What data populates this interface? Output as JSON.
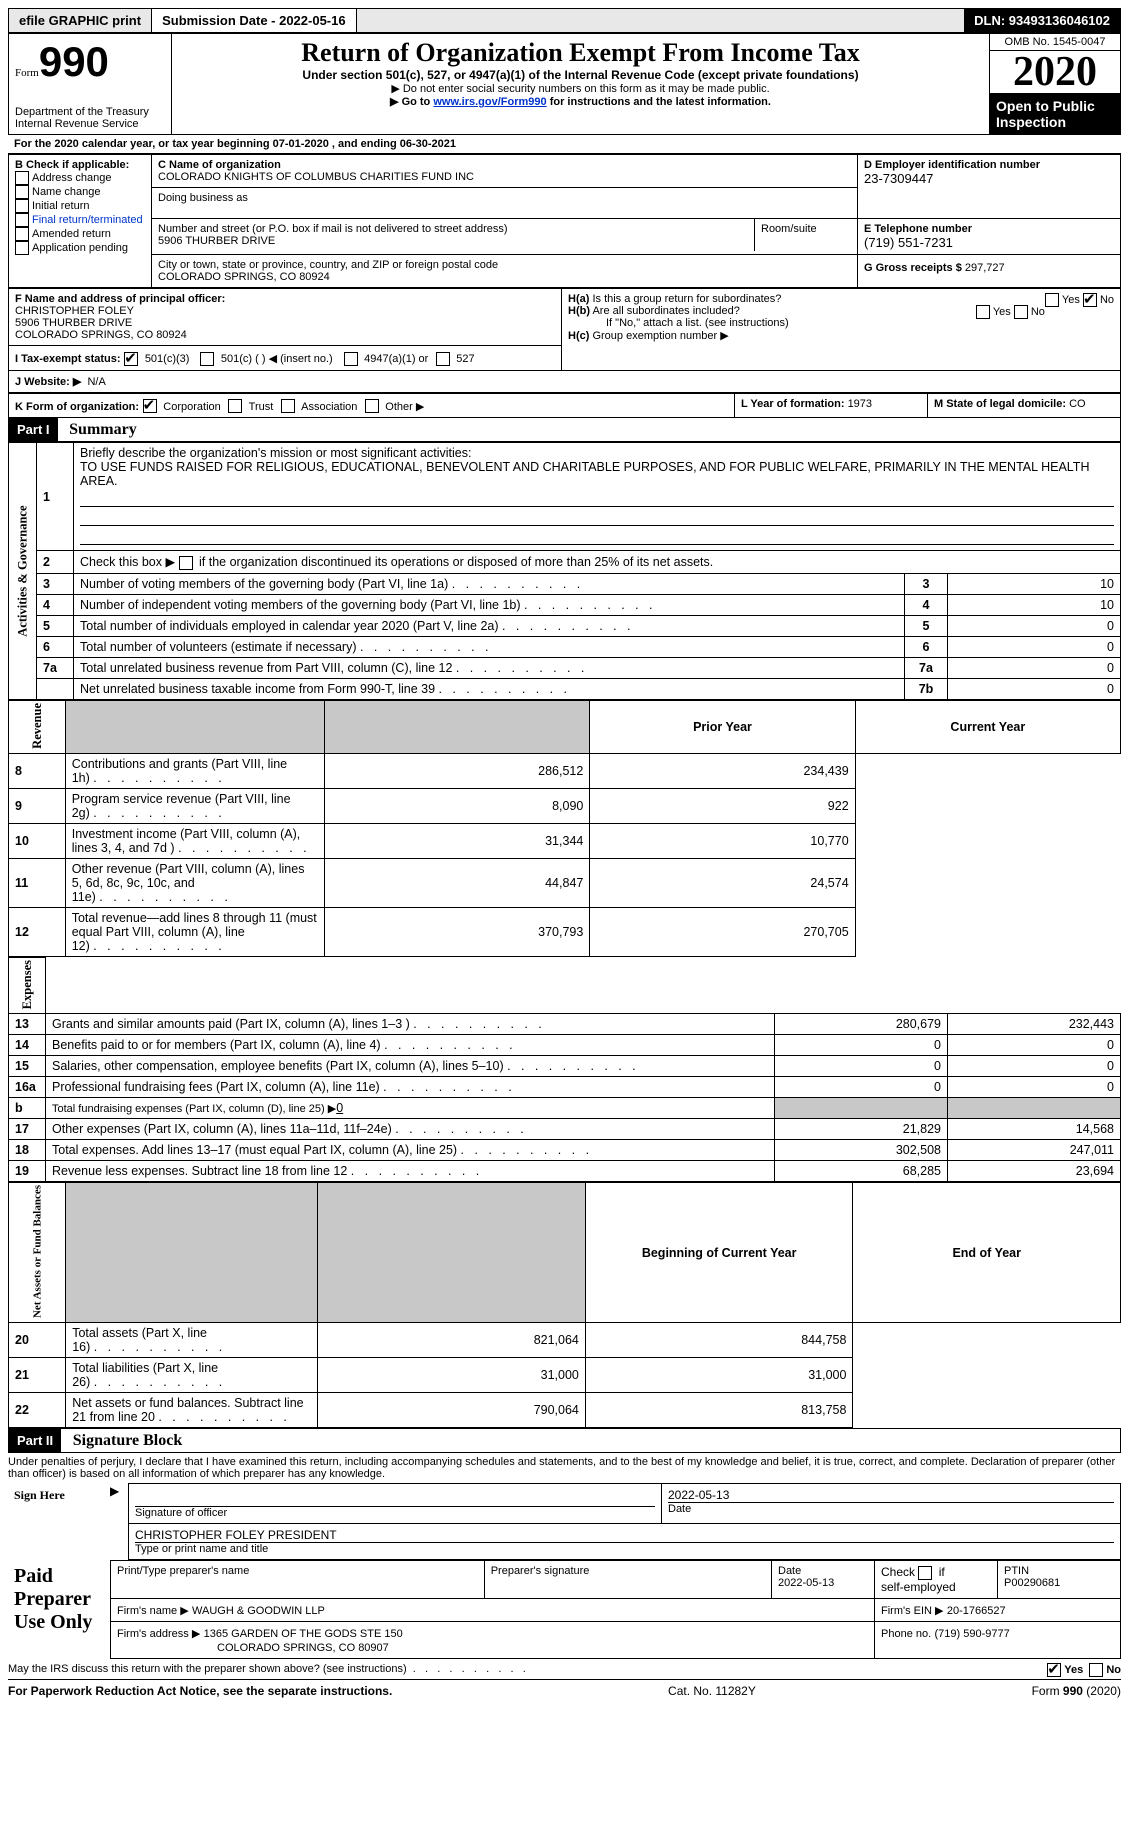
{
  "topbar": {
    "efile": "efile GRAPHIC print",
    "submission_label": "Submission Date - 2022-05-16",
    "dln": "DLN: 93493136046102"
  },
  "header": {
    "form_word": "Form",
    "form_num": "990",
    "dept": "Department of the Treasury\nInternal Revenue Service",
    "title": "Return of Organization Exempt From Income Tax",
    "subtitle": "Under section 501(c), 527, or 4947(a)(1) of the Internal Revenue Code (except private foundations)",
    "note1": "▶ Do not enter social security numbers on this form as it may be made public.",
    "note2_pre": "▶ Go to ",
    "note2_link": "www.irs.gov/Form990",
    "note2_post": " for instructions and the latest information.",
    "omb": "OMB No. 1545-0047",
    "year": "2020",
    "open": "Open to Public Inspection"
  },
  "A": "For the 2020 calendar year, or tax year beginning 07-01-2020   , and ending 06-30-2021",
  "B": {
    "label": "B Check if applicable:",
    "items": [
      "Address change",
      "Name change",
      "Initial return",
      "Final return/terminated",
      "Amended return",
      "Application pending"
    ]
  },
  "C": {
    "name_label": "C Name of organization",
    "name": "COLORADO KNIGHTS OF COLUMBUS CHARITIES FUND INC",
    "dba_label": "Doing business as",
    "addr_label": "Number and street (or P.O. box if mail is not delivered to street address)",
    "room_label": "Room/suite",
    "addr": "5906 THURBER DRIVE",
    "city_label": "City or town, state or province, country, and ZIP or foreign postal code",
    "city": "COLORADO SPRINGS, CO  80924"
  },
  "D": {
    "label": "D Employer identification number",
    "value": "23-7309447"
  },
  "E": {
    "label": "E Telephone number",
    "value": "(719) 551-7231"
  },
  "G": {
    "label": "G Gross receipts $ ",
    "value": "297,727"
  },
  "F": {
    "label": "F  Name and address of principal officer:",
    "name": "CHRISTOPHER FOLEY",
    "addr1": "5906 THURBER DRIVE",
    "addr2": "COLORADO SPRINGS, CO  80924"
  },
  "H": {
    "a": "Is this a group return for subordinates?",
    "b": "Are all subordinates included?",
    "b_note": "If \"No,\" attach a list. (see instructions)",
    "c": "Group exemption number ▶",
    "yes": "Yes",
    "no": "No"
  },
  "I": {
    "label": "I  Tax-exempt status:",
    "o1": "501(c)(3)",
    "o2": "501(c) (   ) ◀ (insert no.)",
    "o3": "4947(a)(1) or",
    "o4": "527"
  },
  "J": {
    "label": "J  Website: ▶",
    "value": "N/A"
  },
  "K": {
    "label": "K Form of organization:",
    "o1": "Corporation",
    "o2": "Trust",
    "o3": "Association",
    "o4": "Other ▶"
  },
  "L": {
    "label": "L Year of formation: ",
    "value": "1973"
  },
  "M": {
    "label": "M State of legal domicile: ",
    "value": "CO"
  },
  "part1": {
    "header": "Part I",
    "title": "Summary",
    "q1_label": "Briefly describe the organization's mission or most significant activities:",
    "q1_text": "TO USE FUNDS RAISED FOR RELIGIOUS, EDUCATIONAL, BENEVOLENT AND CHARITABLE PURPOSES, AND FOR PUBLIC WELFARE, PRIMARILY IN THE MENTAL HEALTH AREA.",
    "q2": "Check this box ▶        if the organization discontinued its operations or disposed of more than 25% of its net assets.",
    "vlabels": {
      "a": "Activities & Governance",
      "b": "Revenue",
      "c": "Expenses",
      "d": "Net Assets or Fund Balances"
    },
    "col_prior": "Prior Year",
    "col_current": "Current Year",
    "col_begin": "Beginning of Current Year",
    "col_end": "End of Year",
    "lines_gov": [
      {
        "n": "3",
        "t": "Number of voting members of the governing body (Part VI, line 1a)",
        "box": "3",
        "v": "10"
      },
      {
        "n": "4",
        "t": "Number of independent voting members of the governing body (Part VI, line 1b)",
        "box": "4",
        "v": "10"
      },
      {
        "n": "5",
        "t": "Total number of individuals employed in calendar year 2020 (Part V, line 2a)",
        "box": "5",
        "v": "0"
      },
      {
        "n": "6",
        "t": "Total number of volunteers (estimate if necessary)",
        "box": "6",
        "v": "0"
      },
      {
        "n": "7a",
        "t": "Total unrelated business revenue from Part VIII, column (C), line 12",
        "box": "7a",
        "v": "0"
      },
      {
        "n": "",
        "t": "Net unrelated business taxable income from Form 990-T, line 39",
        "box": "7b",
        "v": "0"
      }
    ],
    "lines_rev": [
      {
        "n": "8",
        "t": "Contributions and grants (Part VIII, line 1h)",
        "p": "286,512",
        "c": "234,439"
      },
      {
        "n": "9",
        "t": "Program service revenue (Part VIII, line 2g)",
        "p": "8,090",
        "c": "922"
      },
      {
        "n": "10",
        "t": "Investment income (Part VIII, column (A), lines 3, 4, and 7d )",
        "p": "31,344",
        "c": "10,770"
      },
      {
        "n": "11",
        "t": "Other revenue (Part VIII, column (A), lines 5, 6d, 8c, 9c, 10c, and 11e)",
        "p": "44,847",
        "c": "24,574"
      },
      {
        "n": "12",
        "t": "Total revenue—add lines 8 through 11 (must equal Part VIII, column (A), line 12)",
        "p": "370,793",
        "c": "270,705"
      }
    ],
    "lines_exp": [
      {
        "n": "13",
        "t": "Grants and similar amounts paid (Part IX, column (A), lines 1–3 )",
        "p": "280,679",
        "c": "232,443"
      },
      {
        "n": "14",
        "t": "Benefits paid to or for members (Part IX, column (A), line 4)",
        "p": "0",
        "c": "0"
      },
      {
        "n": "15",
        "t": "Salaries, other compensation, employee benefits (Part IX, column (A), lines 5–10)",
        "p": "0",
        "c": "0"
      },
      {
        "n": "16a",
        "t": "Professional fundraising fees (Part IX, column (A), line 11e)",
        "p": "0",
        "c": "0"
      }
    ],
    "line_16b_label": "Total fundraising expenses (Part IX, column (D), line 25) ▶",
    "line_16b_val": "0",
    "lines_exp2": [
      {
        "n": "17",
        "t": "Other expenses (Part IX, column (A), lines 11a–11d, 11f–24e)",
        "p": "21,829",
        "c": "14,568"
      },
      {
        "n": "18",
        "t": "Total expenses. Add lines 13–17 (must equal Part IX, column (A), line 25)",
        "p": "302,508",
        "c": "247,011"
      },
      {
        "n": "19",
        "t": "Revenue less expenses. Subtract line 18 from line 12",
        "p": "68,285",
        "c": "23,694"
      }
    ],
    "lines_net": [
      {
        "n": "20",
        "t": "Total assets (Part X, line 16)",
        "p": "821,064",
        "c": "844,758"
      },
      {
        "n": "21",
        "t": "Total liabilities (Part X, line 26)",
        "p": "31,000",
        "c": "31,000"
      },
      {
        "n": "22",
        "t": "Net assets or fund balances. Subtract line 21 from line 20",
        "p": "790,064",
        "c": "813,758"
      }
    ]
  },
  "part2": {
    "header": "Part II",
    "title": "Signature Block",
    "declaration": "Under penalties of perjury, I declare that I have examined this return, including accompanying schedules and statements, and to the best of my knowledge and belief, it is true, correct, and complete. Declaration of preparer (other than officer) is based on all information of which preparer has any knowledge.",
    "sign_here": "Sign Here",
    "sig_officer": "Signature of officer",
    "sig_date": "2022-05-13",
    "date_label": "Date",
    "officer_name": "CHRISTOPHER FOLEY PRESIDENT",
    "type_name": "Type or print name and title",
    "paid_label": "Paid Preparer Use Only",
    "prep_name_label": "Print/Type preparer's name",
    "prep_sig_label": "Preparer's signature",
    "prep_date_label": "Date",
    "prep_date": "2022-05-13",
    "check_self": "Check        if self-employed",
    "ptin_label": "PTIN",
    "ptin": "P00290681",
    "firm_name_label": "Firm's name   ▶",
    "firm_name": "WAUGH & GOODWIN LLP",
    "firm_ein_label": "Firm's EIN ▶",
    "firm_ein": "20-1766527",
    "firm_addr_label": "Firm's address ▶",
    "firm_addr1": "1365 GARDEN OF THE GODS STE 150",
    "firm_addr2": "COLORADO SPRINGS, CO  80907",
    "phone_label": "Phone no.",
    "phone": "(719) 590-9777",
    "discuss": "May the IRS discuss this return with the preparer shown above? (see instructions)"
  },
  "footer": {
    "left": "For Paperwork Reduction Act Notice, see the separate instructions.",
    "mid": "Cat. No. 11282Y",
    "right": "Form 990 (2020)"
  }
}
